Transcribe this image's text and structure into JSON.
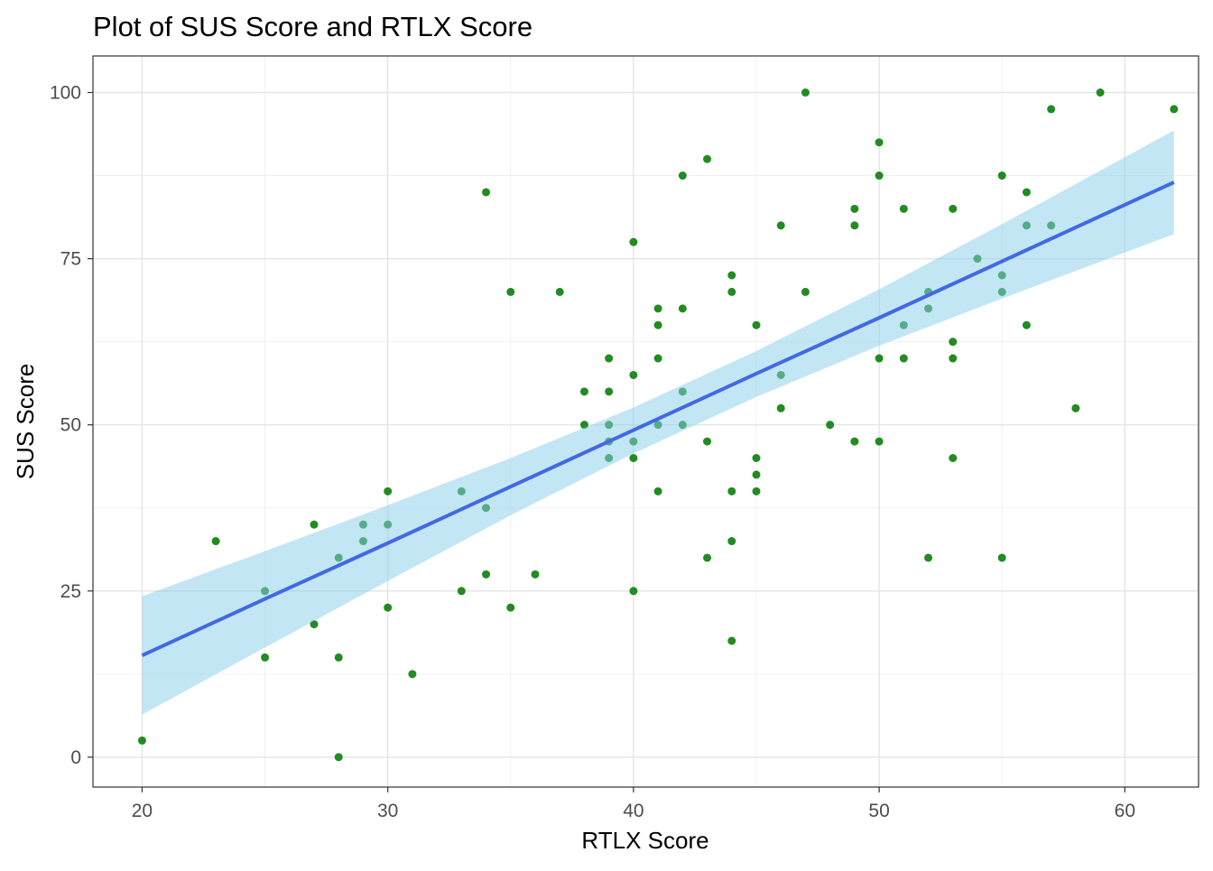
{
  "chart_data": {
    "type": "scatter",
    "title": "Plot of SUS Score and RTLX Score",
    "xlabel": "RTLX Score",
    "ylabel": "SUS Score",
    "xlim": [
      18,
      63
    ],
    "ylim": [
      -4.5,
      105.5
    ],
    "xticks": [
      20,
      30,
      40,
      50,
      60
    ],
    "yticks": [
      0,
      25,
      50,
      75,
      100
    ],
    "grid": true,
    "colors": {
      "points": "#228B22",
      "line": "#4169E1",
      "ribbon": "#87CEEB"
    },
    "points": [
      [
        20,
        2.5
      ],
      [
        23,
        32.5
      ],
      [
        25,
        25
      ],
      [
        25,
        15
      ],
      [
        27,
        35
      ],
      [
        27,
        20
      ],
      [
        28,
        30
      ],
      [
        28,
        15
      ],
      [
        28,
        0
      ],
      [
        29,
        35
      ],
      [
        29,
        32.5
      ],
      [
        30,
        40
      ],
      [
        30,
        35
      ],
      [
        30,
        22.5
      ],
      [
        31,
        12.5
      ],
      [
        33,
        40
      ],
      [
        33,
        25
      ],
      [
        34,
        85
      ],
      [
        34,
        37.5
      ],
      [
        34,
        27.5
      ],
      [
        35,
        70
      ],
      [
        35,
        22.5
      ],
      [
        36,
        27.5
      ],
      [
        37,
        70
      ],
      [
        38,
        55
      ],
      [
        38,
        50
      ],
      [
        39,
        60
      ],
      [
        39,
        55
      ],
      [
        39,
        50
      ],
      [
        39,
        47.5
      ],
      [
        39,
        45
      ],
      [
        40,
        77.5
      ],
      [
        40,
        57.5
      ],
      [
        40,
        47.5
      ],
      [
        40,
        45
      ],
      [
        40,
        25
      ],
      [
        41,
        67.5
      ],
      [
        41,
        65
      ],
      [
        41,
        60
      ],
      [
        41,
        50
      ],
      [
        41,
        40
      ],
      [
        42,
        87.5
      ],
      [
        42,
        67.5
      ],
      [
        42,
        55
      ],
      [
        42,
        50
      ],
      [
        43,
        90
      ],
      [
        43,
        47.5
      ],
      [
        43,
        30
      ],
      [
        44,
        72.5
      ],
      [
        44,
        70
      ],
      [
        44,
        40
      ],
      [
        44,
        32.5
      ],
      [
        44,
        17.5
      ],
      [
        45,
        65
      ],
      [
        45,
        45
      ],
      [
        45,
        42.5
      ],
      [
        45,
        40
      ],
      [
        46,
        80
      ],
      [
        46,
        57.5
      ],
      [
        46,
        52.5
      ],
      [
        47,
        100
      ],
      [
        47,
        70
      ],
      [
        48,
        50
      ],
      [
        49,
        82.5
      ],
      [
        49,
        80
      ],
      [
        49,
        47.5
      ],
      [
        50,
        92.5
      ],
      [
        50,
        87.5
      ],
      [
        50,
        60
      ],
      [
        50,
        47.5
      ],
      [
        51,
        82.5
      ],
      [
        51,
        65
      ],
      [
        51,
        60
      ],
      [
        52,
        70
      ],
      [
        52,
        67.5
      ],
      [
        52,
        30
      ],
      [
        53,
        82.5
      ],
      [
        53,
        62.5
      ],
      [
        53,
        60
      ],
      [
        53,
        45
      ],
      [
        54,
        75
      ],
      [
        55,
        87.5
      ],
      [
        55,
        72.5
      ],
      [
        55,
        70
      ],
      [
        55,
        30
      ],
      [
        56,
        85
      ],
      [
        56,
        80
      ],
      [
        56,
        65
      ],
      [
        57,
        97.5
      ],
      [
        57,
        80
      ],
      [
        58,
        52.5
      ],
      [
        59,
        100
      ],
      [
        62,
        97.5
      ]
    ],
    "regression": {
      "x": [
        20,
        25,
        30,
        35,
        40,
        45,
        50,
        55,
        62
      ],
      "fit": [
        15.3,
        23.8,
        32.2,
        40.7,
        49.2,
        57.7,
        66.1,
        74.6,
        86.5
      ],
      "lower": [
        6.4,
        16.5,
        26.5,
        36.4,
        45.7,
        54.2,
        61.9,
        69.0,
        78.7
      ],
      "upper": [
        24.2,
        31.0,
        37.9,
        45.0,
        52.6,
        61.1,
        70.4,
        80.2,
        94.3
      ]
    }
  }
}
